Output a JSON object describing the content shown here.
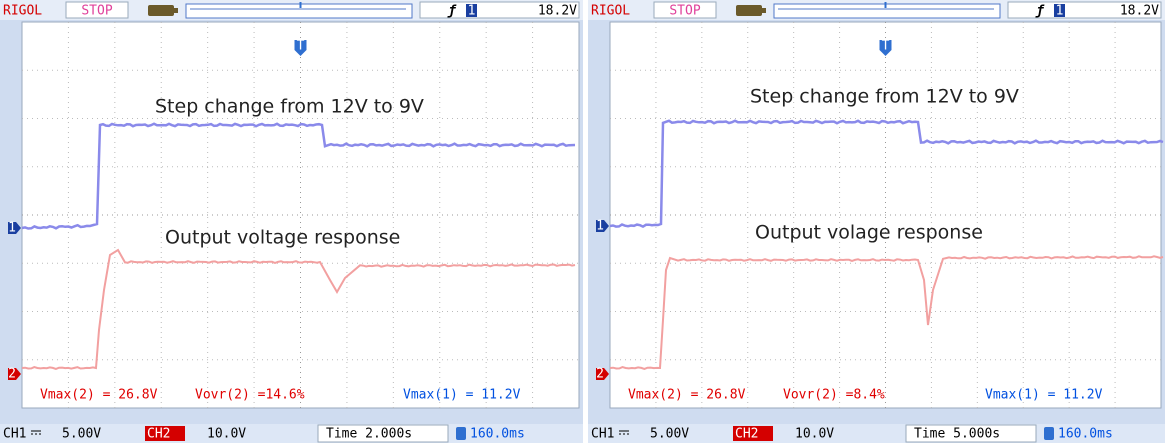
{
  "panels": [
    {
      "brand": "RIGOL",
      "status": "STOP",
      "trigger_channel": "1",
      "trigger_level": "18.2V",
      "trigger_marker": "T",
      "channel_markers": [
        "1",
        "2"
      ],
      "annotations": [
        "Step change from 12V to 9V",
        "Output voltage response"
      ],
      "measurements": [
        "Vmax(2) = 26.8V",
        "Vovr(2) =14.6%",
        "Vmax(1) = 11.2V"
      ],
      "ch1": "CH1",
      "ch1_scale": "5.00V",
      "ch2": "CH2",
      "ch2_scale": "10.0V",
      "timebase": "Time 2.000s",
      "trigger_offset": "160.0ms"
    },
    {
      "brand": "RIGOL",
      "status": "STOP",
      "trigger_channel": "1",
      "trigger_level": "18.2V",
      "trigger_marker": "T",
      "channel_markers": [
        "1",
        "2"
      ],
      "annotations": [
        "Step change from 12V to 9V",
        "Output volage response"
      ],
      "measurements": [
        "Vmax(2) = 26.8V",
        "Vovr(2) =8.4%",
        "Vmax(1) = 11.2V"
      ],
      "ch1": "CH1",
      "ch1_scale": "5.00V",
      "ch2": "CH2",
      "ch2_scale": "10.0V",
      "timebase": "Time 5.000s",
      "trigger_offset": "160.0ms"
    }
  ]
}
